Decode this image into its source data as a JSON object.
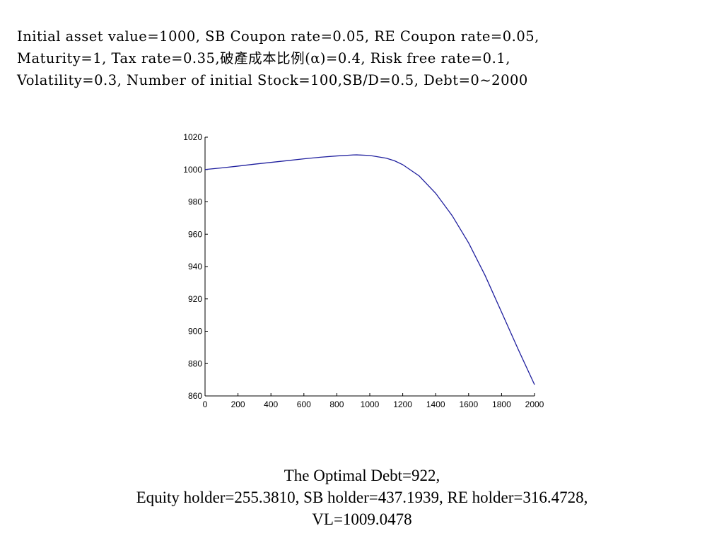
{
  "parameters": {
    "line1": "Initial asset value=1000, SB Coupon rate=0.05, RE Coupon rate=0.05,",
    "line2": "Maturity=1, Tax rate=0.35,破產成本比例(α)=0.4, Risk free rate=0.1,",
    "line3": "Volatility=0.3, Number of initial Stock=100,SB/D=0.5, Debt=0~2000"
  },
  "summary": {
    "line1": "The Optimal Debt=922,",
    "line2": "Equity holder=255.3810, SB holder=437.1939, RE holder=316.4728,",
    "line3": "VL=1009.0478"
  },
  "chart_data": {
    "type": "line",
    "title": "",
    "xlabel": "",
    "ylabel": "",
    "xlim": [
      0,
      2000
    ],
    "ylim": [
      860,
      1020
    ],
    "xticks": [
      "0",
      "200",
      "400",
      "600",
      "800",
      "1000",
      "1200",
      "1400",
      "1600",
      "1800",
      "2000"
    ],
    "yticks": [
      "860",
      "880",
      "900",
      "920",
      "940",
      "960",
      "980",
      "1000",
      "1020"
    ],
    "grid": false,
    "line_color": "#1f1f9e",
    "series": [
      {
        "x": [
          0,
          100,
          200,
          300,
          400,
          500,
          600,
          700,
          800,
          900,
          922,
          1000,
          1100,
          1150,
          1200,
          1300,
          1400,
          1500,
          1600,
          1700,
          1800,
          1900,
          2000
        ],
        "y": [
          1000,
          1001,
          1002.1,
          1003.3,
          1004.4,
          1005.5,
          1006.6,
          1007.6,
          1008.4,
          1009,
          1009.05,
          1008.7,
          1007,
          1005.4,
          1003,
          996,
          985.3,
          971.5,
          954.6,
          934.5,
          911.8,
          889,
          867
        ]
      }
    ]
  }
}
